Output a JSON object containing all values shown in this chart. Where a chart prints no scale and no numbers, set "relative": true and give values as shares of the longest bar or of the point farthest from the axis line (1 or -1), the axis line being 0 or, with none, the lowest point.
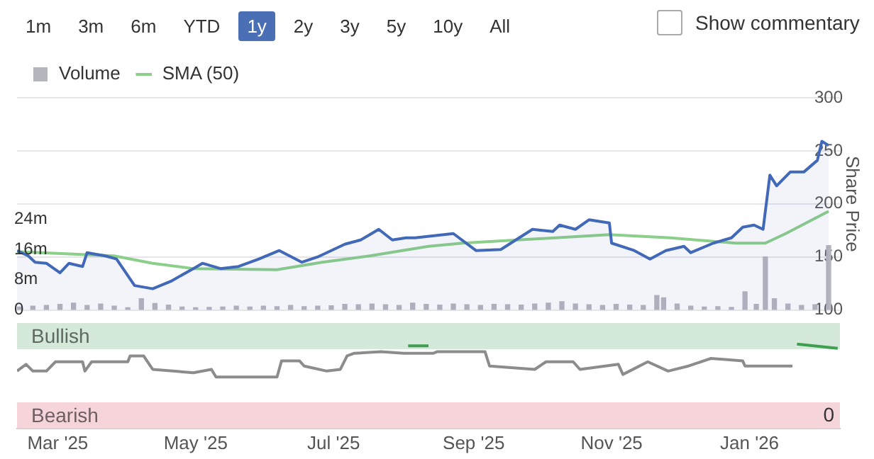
{
  "chart_data": [
    {
      "type": "area",
      "annotations": [
        "1m",
        "3m",
        "6m",
        "YTD",
        "1y",
        "2y",
        "3y",
        "5y",
        "10y",
        "All",
        "Show commentary"
      ],
      "y2label": "Share Price",
      "legend": "top left",
      "grid": "y",
      "tick_labels": "y",
      "xlim": [
        "2025-02-11",
        "2026-02-10"
      ],
      "ylim": [
        0,
        56
      ],
      "yticks": [
        0,
        {
          "value": 8,
          "label": "8m"
        },
        {
          "value": 16,
          "label": "16m"
        },
        {
          "value": 24,
          "label": "24m"
        }
      ],
      "y2lim": [
        100,
        300
      ],
      "y2ticks": [
        100,
        150,
        200,
        250,
        300
      ],
      "series": [
        {
          "name": "Volume",
          "type": "bar",
          "color": "#b5b5be",
          "x": [
            "2025-02-12",
            "2025-02-18",
            "2025-02-24",
            "2025-03-02",
            "2025-03-08",
            "2025-03-14",
            "2025-03-20",
            "2025-03-26",
            "2025-04-01",
            "2025-04-07",
            "2025-04-13",
            "2025-04-19",
            "2025-04-25",
            "2025-05-01",
            "2025-05-07",
            "2025-05-13",
            "2025-05-19",
            "2025-05-25",
            "2025-05-31",
            "2025-06-06",
            "2025-06-12",
            "2025-06-18",
            "2025-06-24",
            "2025-06-30",
            "2025-07-06",
            "2025-07-12",
            "2025-07-18",
            "2025-07-24",
            "2025-07-30",
            "2025-08-05",
            "2025-08-11",
            "2025-08-17",
            "2025-08-23",
            "2025-08-29",
            "2025-09-04",
            "2025-09-10",
            "2025-09-16",
            "2025-09-22",
            "2025-09-28",
            "2025-10-04",
            "2025-10-10",
            "2025-10-16",
            "2025-10-22",
            "2025-10-28",
            "2025-11-03",
            "2025-11-09",
            "2025-11-15",
            "2025-11-21",
            "2025-11-24",
            "2025-11-30",
            "2025-12-06",
            "2025-12-12",
            "2025-12-18",
            "2025-12-24",
            "2025-12-30",
            "2026-01-04",
            "2026-01-08",
            "2026-01-12",
            "2026-01-18",
            "2026-01-24",
            "2026-01-30",
            "2026-02-05"
          ],
          "values": [
            0.8,
            1,
            1.2,
            1.5,
            1.8,
            1.2,
            1.6,
            1,
            0.6,
            3,
            1.7,
            1.3,
            0.8,
            0.6,
            0.7,
            0.8,
            1,
            0.8,
            1,
            0.9,
            1.2,
            0.9,
            1,
            1.1,
            1.5,
            1.4,
            1.6,
            1.4,
            1.2,
            1.8,
            1.5,
            1.3,
            1.6,
            1.4,
            1.2,
            1.5,
            1.4,
            1.3,
            1.6,
            1.8,
            2.2,
            1.6,
            1.4,
            1.2,
            1.5,
            1.3,
            1.2,
            3.8,
            3.2,
            1.6,
            1,
            0.8,
            0.9,
            0.7,
            4.8,
            1.5,
            14,
            3,
            1.6,
            1.2,
            1.4,
            17
          ]
        },
        {
          "axis": "y2",
          "color": "#4169b8",
          "x": [
            "2025-02-11",
            "2025-02-16",
            "2025-02-19",
            "2025-02-24",
            "2025-03-02",
            "2025-03-06",
            "2025-03-12",
            "2025-03-14",
            "2025-03-22",
            "2025-03-27",
            "2025-04-04",
            "2025-04-12",
            "2025-04-20",
            "2025-04-30",
            "2025-05-04",
            "2025-05-12",
            "2025-05-20",
            "2025-05-29",
            "2025-06-07",
            "2025-06-17",
            "2025-06-24",
            "2025-07-06",
            "2025-07-13",
            "2025-07-21",
            "2025-07-27",
            "2025-08-02",
            "2025-08-06",
            "2025-08-23",
            "2025-09-02",
            "2025-09-13",
            "2025-09-27",
            "2025-10-06",
            "2025-10-09",
            "2025-10-16",
            "2025-10-22",
            "2025-10-31",
            "2025-11-01",
            "2025-11-11",
            "2025-11-18",
            "2025-11-25",
            "2025-12-03",
            "2025-12-06",
            "2025-12-16",
            "2025-12-24",
            "2025-12-29",
            "2026-01-03",
            "2026-01-07",
            "2026-01-10",
            "2026-01-13",
            "2026-01-19",
            "2026-01-25",
            "2026-01-31",
            "2026-02-02",
            "2026-02-05"
          ],
          "values": [
            156,
            151,
            145,
            144,
            135,
            144,
            141,
            154,
            151,
            148,
            123,
            120,
            127,
            139,
            144,
            139,
            141,
            148,
            156,
            145,
            150,
            162,
            166,
            176,
            166,
            168,
            168,
            172,
            156,
            157,
            176,
            174,
            180,
            176,
            185,
            182,
            163,
            156,
            148,
            156,
            160,
            154,
            163,
            168,
            178,
            180,
            176,
            227,
            217,
            230,
            230,
            241,
            259,
            255
          ]
        },
        {
          "name": "SMA (50)",
          "type": "line",
          "axis": "y2",
          "color": "#8ccf8a",
          "x": [
            "2025-02-11",
            "2025-03-26",
            "2025-04-12",
            "2025-04-30",
            "2025-06-06",
            "2025-06-26",
            "2025-07-17",
            "2025-08-12",
            "2025-08-27",
            "2025-10-07",
            "2025-10-31",
            "2025-11-27",
            "2025-12-26",
            "2026-01-08",
            "2026-01-17",
            "2026-02-05"
          ],
          "values": [
            155,
            151,
            144,
            139,
            138,
            145,
            151,
            160,
            163,
            168,
            171,
            168,
            163,
            163,
            172,
            193
          ]
        }
      ]
    },
    {
      "type": "line",
      "xlim": [
        "2025-02-11",
        "2026-02-10"
      ],
      "xticks": [
        {
          "value": "2025-03-01",
          "label": "Mar '25"
        },
        {
          "value": "2025-05-01",
          "label": "May '25"
        },
        {
          "value": "2025-07-01",
          "label": "Jul '25"
        },
        {
          "value": "2025-09-01",
          "label": "Sep '25"
        },
        {
          "value": "2025-11-01",
          "label": "Nov '25"
        },
        {
          "value": "2026-01-01",
          "label": "Jan '26"
        }
      ],
      "relative": true,
      "annotations": [
        "0"
      ],
      "bands": [
        {
          "axis": "y",
          "from": 0.94,
          "to": 1.25,
          "label": "Bullish",
          "color": "#d4e9da"
        },
        {
          "axis": "y",
          "from": 0,
          "to": 0.31,
          "label": "Bearish",
          "color": "#f5d5da"
        }
      ],
      "series": [
        {
          "color": "#8c8c8c",
          "x": [
            "2025-02-11",
            "2025-02-15",
            "2025-02-18",
            "2025-02-24",
            "2025-02-28",
            "2025-03-12",
            "2025-03-13",
            "2025-03-16",
            "2025-04-01",
            "2025-04-02",
            "2025-04-08",
            "2025-04-12",
            "2025-04-30",
            "2025-05-08",
            "2025-05-10",
            "2025-06-06",
            "2025-06-08",
            "2025-06-16",
            "2025-06-18",
            "2025-06-28",
            "2025-07-04",
            "2025-07-07",
            "2025-07-10",
            "2025-07-22",
            "2025-08-01",
            "2025-08-14",
            "2025-08-16",
            "2025-09-06",
            "2025-09-08",
            "2025-09-28",
            "2025-10-03",
            "2025-10-15",
            "2025-10-18",
            "2025-11-04",
            "2025-11-06",
            "2025-11-17",
            "2025-11-26",
            "2025-12-05",
            "2025-12-15",
            "2025-12-29",
            "2025-12-30",
            "2026-01-20"
          ],
          "values": [
            0.68,
            0.76,
            0.68,
            0.68,
            0.79,
            0.79,
            0.68,
            0.79,
            0.79,
            0.86,
            0.86,
            0.7,
            0.66,
            0.7,
            0.61,
            0.61,
            0.8,
            0.8,
            0.74,
            0.68,
            0.7,
            0.86,
            0.89,
            0.91,
            0.89,
            0.89,
            0.91,
            0.91,
            0.74,
            0.7,
            0.79,
            0.79,
            0.7,
            0.76,
            0.64,
            0.79,
            0.68,
            0.74,
            0.83,
            0.8,
            0.74,
            0.74
          ]
        },
        {
          "color": "#3f9e4f",
          "x": [
            "2025-08-03",
            "2025-08-12"
          ],
          "values": [
            0.98,
            0.98
          ]
        },
        {
          "color": "#3f9e4f",
          "x": [
            "2026-01-22",
            "2026-02-09"
          ],
          "values": [
            1,
            0.95
          ]
        }
      ]
    }
  ]
}
